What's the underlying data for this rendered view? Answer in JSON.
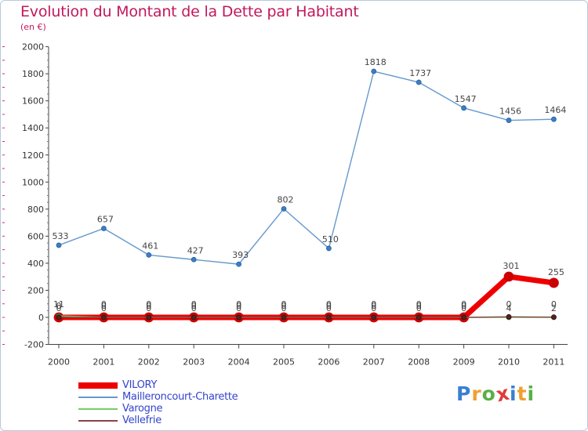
{
  "header": {
    "title": "Evolution du Montant de la Dette par Habitant",
    "subtitle": "(en €)"
  },
  "colors": {
    "title": "#c2185b",
    "vilory": "#ee0000",
    "mailleroncourt": "#6699cc",
    "varogne": "#77cc66",
    "vellefrie": "#884444",
    "legend_text": "#3344cc"
  },
  "chart_data": {
    "type": "line",
    "x": [
      "2000",
      "2001",
      "2002",
      "2003",
      "2004",
      "2005",
      "2006",
      "2007",
      "2008",
      "2009",
      "2010",
      "2011"
    ],
    "ylim": [
      -200,
      2000
    ],
    "yticks": [
      -200,
      0,
      200,
      400,
      600,
      800,
      1000,
      1200,
      1400,
      1600,
      1800,
      2000
    ],
    "grid": false,
    "legend_position": "bottom-left",
    "series": [
      {
        "name": "VILORY",
        "values": [
          0,
          0,
          0,
          0,
          0,
          0,
          0,
          0,
          0,
          0,
          301,
          255
        ],
        "labels": [
          "0",
          "0",
          "0",
          "0",
          "0",
          "0",
          "0",
          "0",
          "0",
          "0",
          "301",
          "255"
        ]
      },
      {
        "name": "Mailleroncourt-Charette",
        "values": [
          533,
          657,
          461,
          427,
          393,
          802,
          510,
          1818,
          1737,
          1547,
          1456,
          1464
        ],
        "labels": [
          "533",
          "657",
          "461",
          "427",
          "393",
          "802",
          "510",
          "1818",
          "1737",
          "1547",
          "1456",
          "1464"
        ]
      },
      {
        "name": "Varogne",
        "values": [
          11,
          0,
          0,
          0,
          0,
          0,
          0,
          0,
          0,
          0,
          0,
          0
        ],
        "labels": [
          "11",
          "0",
          "0",
          "0",
          "0",
          "0",
          "0",
          "0",
          "0",
          "0",
          "0",
          "0"
        ]
      },
      {
        "name": "Vellefrie",
        "values": [
          0,
          0,
          0,
          0,
          0,
          0,
          0,
          0,
          0,
          0,
          4,
          2
        ],
        "labels": [
          "0",
          "0",
          "0",
          "0",
          "0",
          "0",
          "0",
          "0",
          "0",
          "0",
          "4",
          "2"
        ]
      }
    ]
  },
  "legend": {
    "items": [
      "VILORY",
      "Mailleroncourt-Charette",
      "Varogne",
      "Vellefrie"
    ]
  },
  "logo": {
    "letters": [
      "P",
      "r",
      "o",
      "x",
      "i",
      "t",
      "i"
    ],
    "colors": [
      "#3a7fd0",
      "#f0a030",
      "#58b048",
      "#e03a3a",
      "#3a7fd0",
      "#f0a030",
      "#58b048"
    ]
  }
}
